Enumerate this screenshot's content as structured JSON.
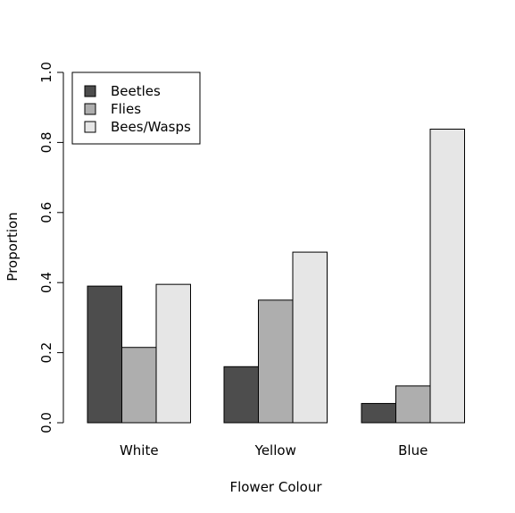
{
  "chart_data": {
    "type": "bar",
    "title": "",
    "xlabel": "Flower Colour",
    "ylabel": "Proportion",
    "ylim": [
      0,
      1
    ],
    "yticks": [
      "0.0",
      "0.2",
      "0.4",
      "0.6",
      "0.8",
      "1.0"
    ],
    "categories": [
      "White",
      "Yellow",
      "Blue"
    ],
    "series": [
      {
        "name": "Beetles",
        "color": "#4d4d4d",
        "values": [
          0.39,
          0.16,
          0.055
        ]
      },
      {
        "name": "Flies",
        "color": "#aeaeae",
        "values": [
          0.215,
          0.35,
          0.105
        ]
      },
      {
        "name": "Bees/Wasps",
        "color": "#e6e6e6",
        "values": [
          0.395,
          0.487,
          0.838
        ]
      }
    ],
    "grid": false,
    "legend_position": "top-left"
  }
}
